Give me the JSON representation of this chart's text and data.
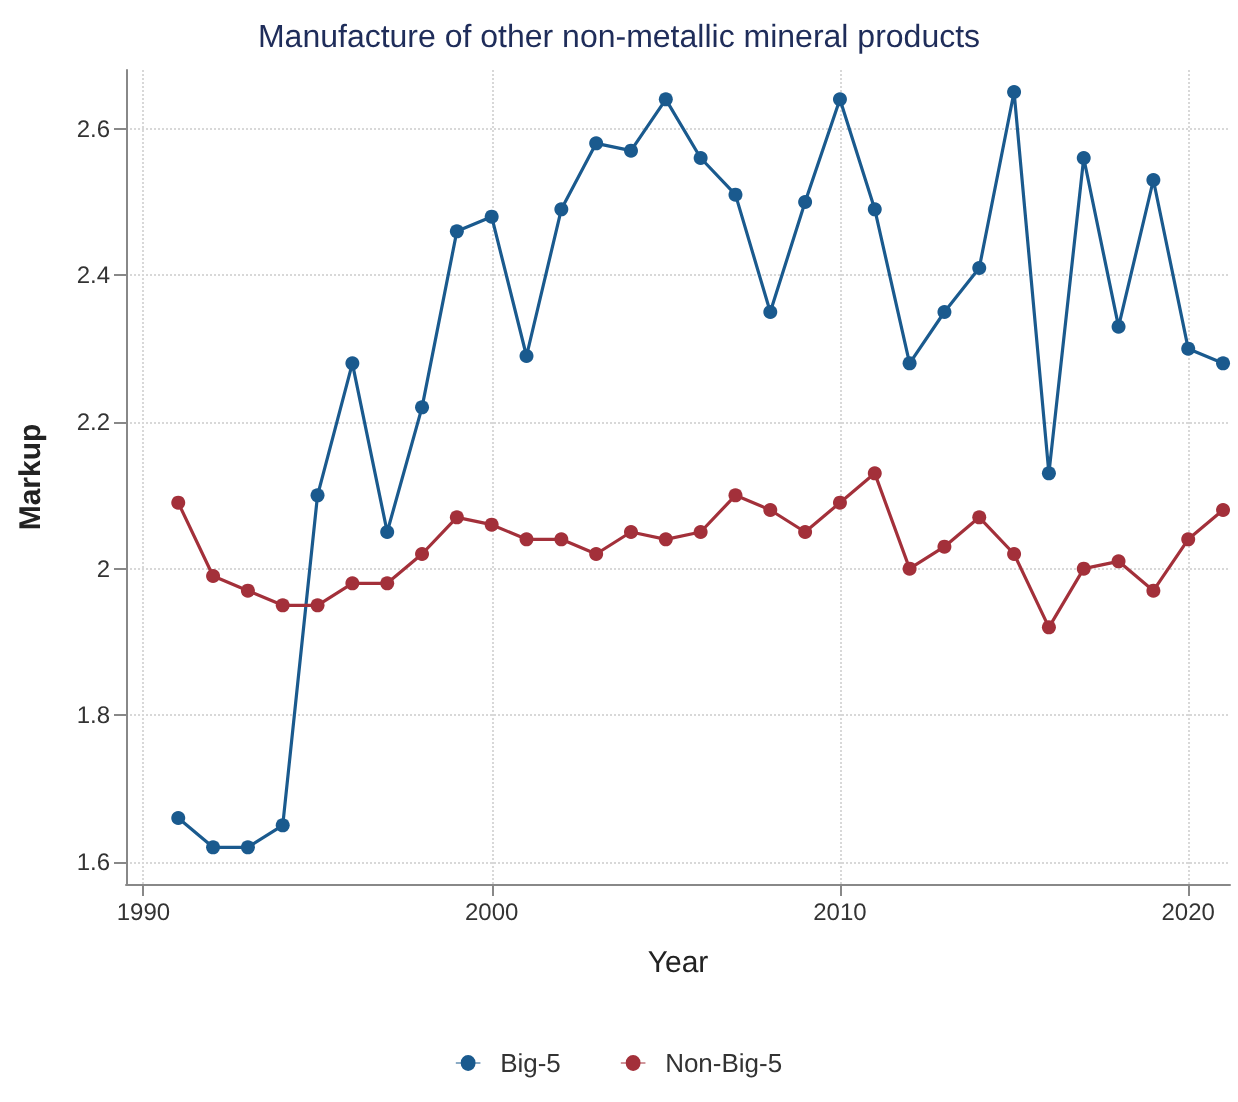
{
  "chart_data": {
    "type": "line",
    "title": "Manufacture of other non-metallic mineral products",
    "xlabel": "Year",
    "ylabel": "Markup",
    "x": [
      1991,
      1992,
      1993,
      1994,
      1995,
      1996,
      1997,
      1998,
      1999,
      2000,
      2001,
      2002,
      2003,
      2004,
      2005,
      2006,
      2007,
      2008,
      2009,
      2010,
      2011,
      2012,
      2013,
      2014,
      2015,
      2016,
      2017,
      2018,
      2019,
      2020,
      2021
    ],
    "series": [
      {
        "name": "Big-5",
        "color": "#1a5a8e",
        "values": [
          1.66,
          1.62,
          1.62,
          1.65,
          2.1,
          2.28,
          2.05,
          2.22,
          2.46,
          2.48,
          2.29,
          2.49,
          2.58,
          2.57,
          2.64,
          2.56,
          2.51,
          2.35,
          2.5,
          2.64,
          2.49,
          2.28,
          2.35,
          2.41,
          2.65,
          2.13,
          2.56,
          2.33,
          2.53,
          2.3,
          2.28
        ]
      },
      {
        "name": "Non-Big-5",
        "color": "#a3303a",
        "values": [
          2.09,
          1.99,
          1.97,
          1.95,
          1.95,
          1.98,
          1.98,
          2.02,
          2.07,
          2.06,
          2.04,
          2.04,
          2.02,
          2.05,
          2.04,
          2.05,
          2.1,
          2.08,
          2.05,
          2.09,
          2.13,
          2.0,
          2.03,
          2.07,
          2.02,
          1.92,
          2.0,
          2.01,
          1.97,
          2.04,
          2.08
        ]
      }
    ],
    "xlim": [
      1989.5,
      2021.2
    ],
    "xticks": [
      1990,
      2000,
      2010,
      2020
    ],
    "ylim": [
      1.57,
      2.68
    ],
    "yticks": [
      1.6,
      1.8,
      2,
      2.2,
      2.4,
      2.6
    ],
    "grid": true,
    "legend": "bottom",
    "marker": "circle",
    "line_style": "solid"
  }
}
